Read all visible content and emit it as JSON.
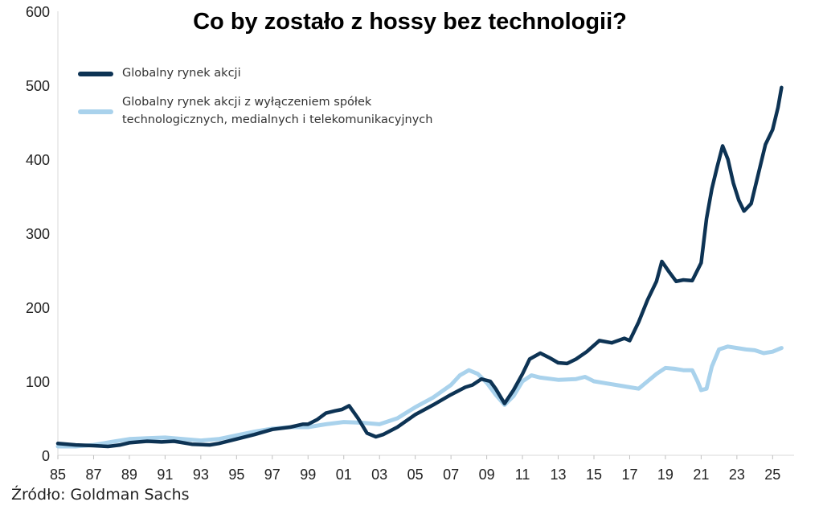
{
  "chart_data": {
    "type": "line",
    "title": "Co by zostało z hossy bez technologii?",
    "xlabel": "",
    "ylabel": "",
    "ylim": [
      0,
      600
    ],
    "xlim": [
      1985,
      2026.2
    ],
    "y_ticks": [
      0,
      100,
      200,
      300,
      400,
      500,
      600
    ],
    "y_tick_labels": [
      "0",
      "100",
      "200",
      "300",
      "400",
      "500",
      "600"
    ],
    "x_ticks": [
      1985,
      1987,
      1989,
      1991,
      1993,
      1995,
      1997,
      1999,
      2001,
      2003,
      2005,
      2007,
      2009,
      2011,
      2013,
      2015,
      2017,
      2019,
      2021,
      2023,
      2025
    ],
    "x_tick_labels": [
      "85",
      "87",
      "89",
      "91",
      "93",
      "95",
      "97",
      "99",
      "01",
      "03",
      "05",
      "07",
      "09",
      "11",
      "13",
      "15",
      "17",
      "19",
      "21",
      "23",
      "25"
    ],
    "grid": false,
    "legend_position": "top-left",
    "series": [
      {
        "name": "Globalny rynek akcji",
        "color": "#0d3354",
        "x": [
          1985.0,
          1986.0,
          1987.0,
          1987.8,
          1988.5,
          1989.0,
          1990.0,
          1990.8,
          1991.5,
          1992.5,
          1993.5,
          1994.0,
          1995.0,
          1996.0,
          1997.0,
          1998.0,
          1998.7,
          1999.0,
          1999.5,
          2000.0,
          2000.5,
          2000.9,
          2001.3,
          2001.8,
          2002.3,
          2002.8,
          2003.2,
          2004.0,
          2005.0,
          2006.0,
          2007.0,
          2007.8,
          2008.2,
          2008.7,
          2009.2,
          2009.5,
          2010.0,
          2010.5,
          2011.0,
          2011.4,
          2012.0,
          2012.5,
          2013.0,
          2013.5,
          2014.0,
          2014.6,
          2015.3,
          2016.0,
          2016.7,
          2017.0,
          2017.5,
          2018.0,
          2018.5,
          2018.8,
          2019.2,
          2019.6,
          2020.0,
          2020.5,
          2021.0,
          2021.3,
          2021.6,
          2021.9,
          2022.2,
          2022.5,
          2022.8,
          2023.1,
          2023.4,
          2023.8,
          2024.2,
          2024.6,
          2025.0,
          2025.3,
          2025.5
        ],
        "values": [
          16,
          14,
          13,
          12,
          14,
          17,
          19,
          18,
          19,
          15,
          14,
          16,
          22,
          28,
          35,
          38,
          42,
          42,
          48,
          57,
          60,
          62,
          67,
          50,
          30,
          25,
          28,
          38,
          55,
          68,
          82,
          92,
          95,
          103,
          100,
          90,
          70,
          88,
          110,
          130,
          138,
          132,
          125,
          124,
          130,
          140,
          155,
          152,
          158,
          155,
          180,
          210,
          235,
          262,
          248,
          235,
          237,
          236,
          260,
          320,
          360,
          390,
          418,
          400,
          368,
          345,
          330,
          340,
          380,
          420,
          440,
          470,
          497
        ]
      },
      {
        "name": "Globalny rynek akcji z wyłączeniem spółek technologicznych, medialnych i telekomunikacyjnych",
        "color": "#a9d2ec",
        "x": [
          1985.0,
          1986.0,
          1987.0,
          1988.0,
          1989.0,
          1990.0,
          1991.0,
          1992.0,
          1993.0,
          1994.0,
          1995.0,
          1996.0,
          1997.0,
          1998.0,
          1999.0,
          2000.0,
          2001.0,
          2002.0,
          2003.0,
          2004.0,
          2005.0,
          2006.0,
          2007.0,
          2007.5,
          2008.0,
          2008.5,
          2009.0,
          2009.5,
          2010.0,
          2010.5,
          2011.0,
          2011.5,
          2012.0,
          2013.0,
          2014.0,
          2014.5,
          2015.0,
          2016.0,
          2017.0,
          2017.5,
          2018.0,
          2018.5,
          2019.0,
          2019.5,
          2020.0,
          2020.5,
          2020.8,
          2021.0,
          2021.3,
          2021.6,
          2022.0,
          2022.5,
          2023.0,
          2023.5,
          2024.0,
          2024.5,
          2025.0,
          2025.5
        ],
        "values": [
          12,
          12,
          14,
          18,
          22,
          23,
          24,
          22,
          20,
          22,
          27,
          32,
          36,
          38,
          38,
          42,
          45,
          44,
          42,
          50,
          65,
          78,
          95,
          108,
          115,
          110,
          98,
          82,
          68,
          80,
          100,
          108,
          105,
          102,
          103,
          106,
          100,
          96,
          92,
          90,
          100,
          110,
          118,
          117,
          115,
          115,
          100,
          88,
          90,
          120,
          143,
          147,
          145,
          143,
          142,
          138,
          140,
          145
        ]
      }
    ]
  },
  "source": "Źródło: Goldman Sachs"
}
